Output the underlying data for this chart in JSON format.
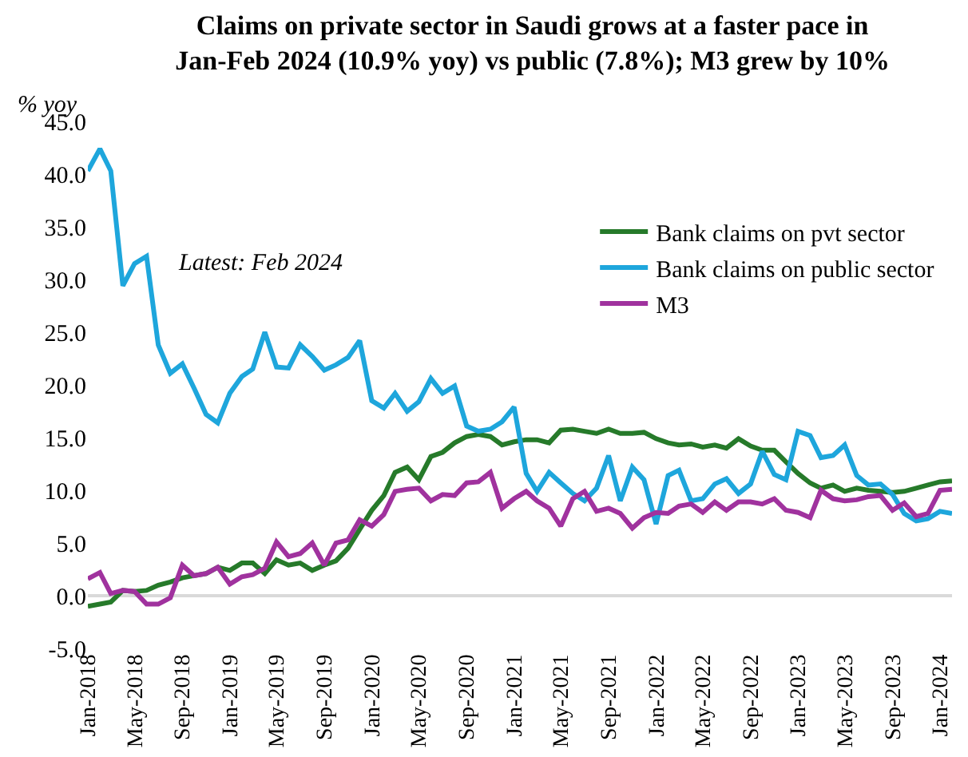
{
  "chart_data": {
    "type": "line",
    "title": "Claims on private sector in Saudi grows at a faster pace in Jan-Feb 2024 (10.9% yoy) vs public (7.8%); M3 grew by 10%",
    "ylabel": "% yoy",
    "annotations": [
      "Latest: Feb 2024"
    ],
    "x": [
      "2018-01",
      "2018-02",
      "2018-03",
      "2018-04",
      "2018-05",
      "2018-06",
      "2018-07",
      "2018-08",
      "2018-09",
      "2018-10",
      "2018-11",
      "2018-12",
      "2019-01",
      "2019-02",
      "2019-03",
      "2019-04",
      "2019-05",
      "2019-06",
      "2019-07",
      "2019-08",
      "2019-09",
      "2019-10",
      "2019-11",
      "2019-12",
      "2020-01",
      "2020-02",
      "2020-03",
      "2020-04",
      "2020-05",
      "2020-06",
      "2020-07",
      "2020-08",
      "2020-09",
      "2020-10",
      "2020-11",
      "2020-12",
      "2021-01",
      "2021-02",
      "2021-03",
      "2021-04",
      "2021-05",
      "2021-06",
      "2021-07",
      "2021-08",
      "2021-09",
      "2021-10",
      "2021-11",
      "2021-12",
      "2022-01",
      "2022-02",
      "2022-03",
      "2022-04",
      "2022-05",
      "2022-06",
      "2022-07",
      "2022-08",
      "2022-09",
      "2022-10",
      "2022-11",
      "2022-12",
      "2023-01",
      "2023-02",
      "2023-03",
      "2023-04",
      "2023-05",
      "2023-06",
      "2023-07",
      "2023-08",
      "2023-09",
      "2023-10",
      "2023-11",
      "2023-12",
      "2024-01",
      "2024-02"
    ],
    "series": [
      {
        "name": "Bank claims on pvt sector",
        "color": "#267a2a",
        "values": [
          -1.0,
          -0.8,
          -0.6,
          0.5,
          0.4,
          0.5,
          1.0,
          1.3,
          1.7,
          1.9,
          2.1,
          2.7,
          2.4,
          3.1,
          3.1,
          2.1,
          3.4,
          2.9,
          3.1,
          2.4,
          2.9,
          3.3,
          4.5,
          6.3,
          8.1,
          9.5,
          11.7,
          12.2,
          11.0,
          13.2,
          13.6,
          14.5,
          15.1,
          15.3,
          15.1,
          14.3,
          14.6,
          14.8,
          14.8,
          14.5,
          15.7,
          15.8,
          15.6,
          15.4,
          15.8,
          15.4,
          15.4,
          15.5,
          14.9,
          14.5,
          14.3,
          14.4,
          14.1,
          14.3,
          14.0,
          14.9,
          14.2,
          13.8,
          13.8,
          12.7,
          11.6,
          10.7,
          10.2,
          10.5,
          9.9,
          10.2,
          10.0,
          9.9,
          9.8,
          9.9,
          10.2,
          10.5,
          10.8,
          10.9
        ]
      },
      {
        "name": "Bank claims on public sector",
        "color": "#1ea6dc",
        "values": [
          40.3,
          42.4,
          40.3,
          29.4,
          31.5,
          32.2,
          23.8,
          21.1,
          22.0,
          19.7,
          17.2,
          16.4,
          19.2,
          20.8,
          21.5,
          25.0,
          21.7,
          21.6,
          23.8,
          22.7,
          21.4,
          21.9,
          22.6,
          24.2,
          18.5,
          17.8,
          19.2,
          17.5,
          18.4,
          20.6,
          19.2,
          19.9,
          16.1,
          15.6,
          15.8,
          16.5,
          17.9,
          11.6,
          9.9,
          11.7,
          10.7,
          9.7,
          9.0,
          10.2,
          13.3,
          9.0,
          12.2,
          11.0,
          6.8,
          11.4,
          11.9,
          9.0,
          9.2,
          10.6,
          11.1,
          9.7,
          10.6,
          13.7,
          11.5,
          11.0,
          15.6,
          15.2,
          13.1,
          13.3,
          14.3,
          11.4,
          10.5,
          10.6,
          9.6,
          7.8,
          7.1,
          7.3,
          8.0,
          7.8
        ]
      },
      {
        "name": "M3",
        "color": "#a0329e",
        "values": [
          1.6,
          2.2,
          0.2,
          0.5,
          0.4,
          -0.8,
          -0.8,
          -0.2,
          2.9,
          1.9,
          2.1,
          2.7,
          1.1,
          1.8,
          2.0,
          2.6,
          5.1,
          3.7,
          4.0,
          5.0,
          2.9,
          5.0,
          5.3,
          7.2,
          6.6,
          7.7,
          9.9,
          10.1,
          10.2,
          9.0,
          9.6,
          9.5,
          10.7,
          10.8,
          11.7,
          8.3,
          9.2,
          9.9,
          9.0,
          8.3,
          6.6,
          9.2,
          9.9,
          8.0,
          8.3,
          7.8,
          6.4,
          7.4,
          7.9,
          7.8,
          8.5,
          8.7,
          7.9,
          8.9,
          8.1,
          8.9,
          8.9,
          8.7,
          9.2,
          8.1,
          7.9,
          7.4,
          10.0,
          9.2,
          9.0,
          9.1,
          9.4,
          9.5,
          8.1,
          8.8,
          7.5,
          7.8,
          10.0,
          10.1
        ]
      }
    ],
    "ylim": [
      -5,
      45
    ],
    "yticks": [
      {
        "value": -5,
        "label": "-5.0"
      },
      {
        "value": 0,
        "label": "0.0"
      },
      {
        "value": 5,
        "label": "5.0"
      },
      {
        "value": 10,
        "label": "10.0"
      },
      {
        "value": 15,
        "label": "15.0"
      },
      {
        "value": 20,
        "label": "20.0"
      },
      {
        "value": 25,
        "label": "25.0"
      },
      {
        "value": 30,
        "label": "30.0"
      },
      {
        "value": 35,
        "label": "35.0"
      },
      {
        "value": 40,
        "label": "40.0"
      },
      {
        "value": 45,
        "label": "45.0"
      }
    ],
    "xlim": [
      "2018-01",
      "2024-02"
    ],
    "xticks": [
      {
        "value": "2018-01",
        "label": "Jan-2018"
      },
      {
        "value": "2018-05",
        "label": "May-2018"
      },
      {
        "value": "2018-09",
        "label": "Sep-2018"
      },
      {
        "value": "2019-01",
        "label": "Jan-2019"
      },
      {
        "value": "2019-05",
        "label": "May-2019"
      },
      {
        "value": "2019-09",
        "label": "Sep-2019"
      },
      {
        "value": "2020-01",
        "label": "Jan-2020"
      },
      {
        "value": "2020-05",
        "label": "May-2020"
      },
      {
        "value": "2020-09",
        "label": "Sep-2020"
      },
      {
        "value": "2021-01",
        "label": "Jan-2021"
      },
      {
        "value": "2021-05",
        "label": "May-2021"
      },
      {
        "value": "2021-09",
        "label": "Sep-2021"
      },
      {
        "value": "2022-01",
        "label": "Jan-2022"
      },
      {
        "value": "2022-05",
        "label": "May-2022"
      },
      {
        "value": "2022-09",
        "label": "Sep-2022"
      },
      {
        "value": "2023-01",
        "label": "Jan-2023"
      },
      {
        "value": "2023-05",
        "label": "May-2023"
      },
      {
        "value": "2023-09",
        "label": "Sep-2023"
      },
      {
        "value": "2024-01",
        "label": "Jan-2024"
      }
    ],
    "legend": "top right",
    "marker": "none",
    "line_style": "solid"
  }
}
